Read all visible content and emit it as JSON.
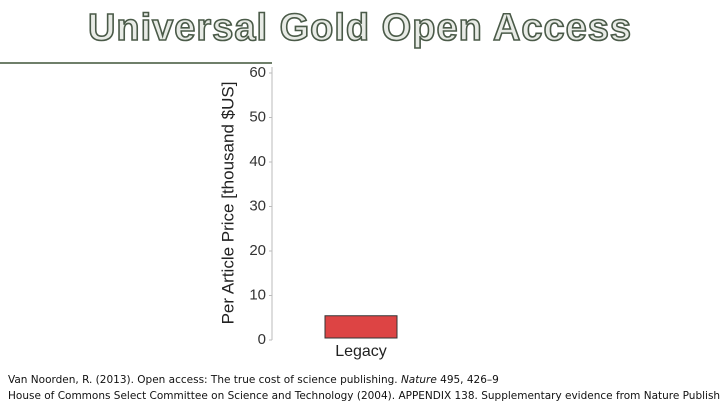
{
  "chart_data": {
    "type": "bar",
    "title": "Universal Gold Open Access",
    "y_label": "Per Article Price [thousand $US]",
    "categories": [
      "Legacy"
    ],
    "values": [
      5
    ],
    "color": "#dd4444",
    "ylim": [
      0,
      60
    ],
    "yticks": [
      0,
      10,
      20,
      30,
      40,
      50,
      60
    ],
    "grid": false
  },
  "footnotes": [
    {
      "text": "Van Noorden, R. (2013). Open access: The true cost of science publishing.",
      "journal": "Nature",
      "rest": "495, 426–9"
    },
    {
      "text": "House of Commons Select Committee on Science and Technology (2004). APPENDIX 138. Supplementary evidence from Nature Publishing"
    }
  ]
}
